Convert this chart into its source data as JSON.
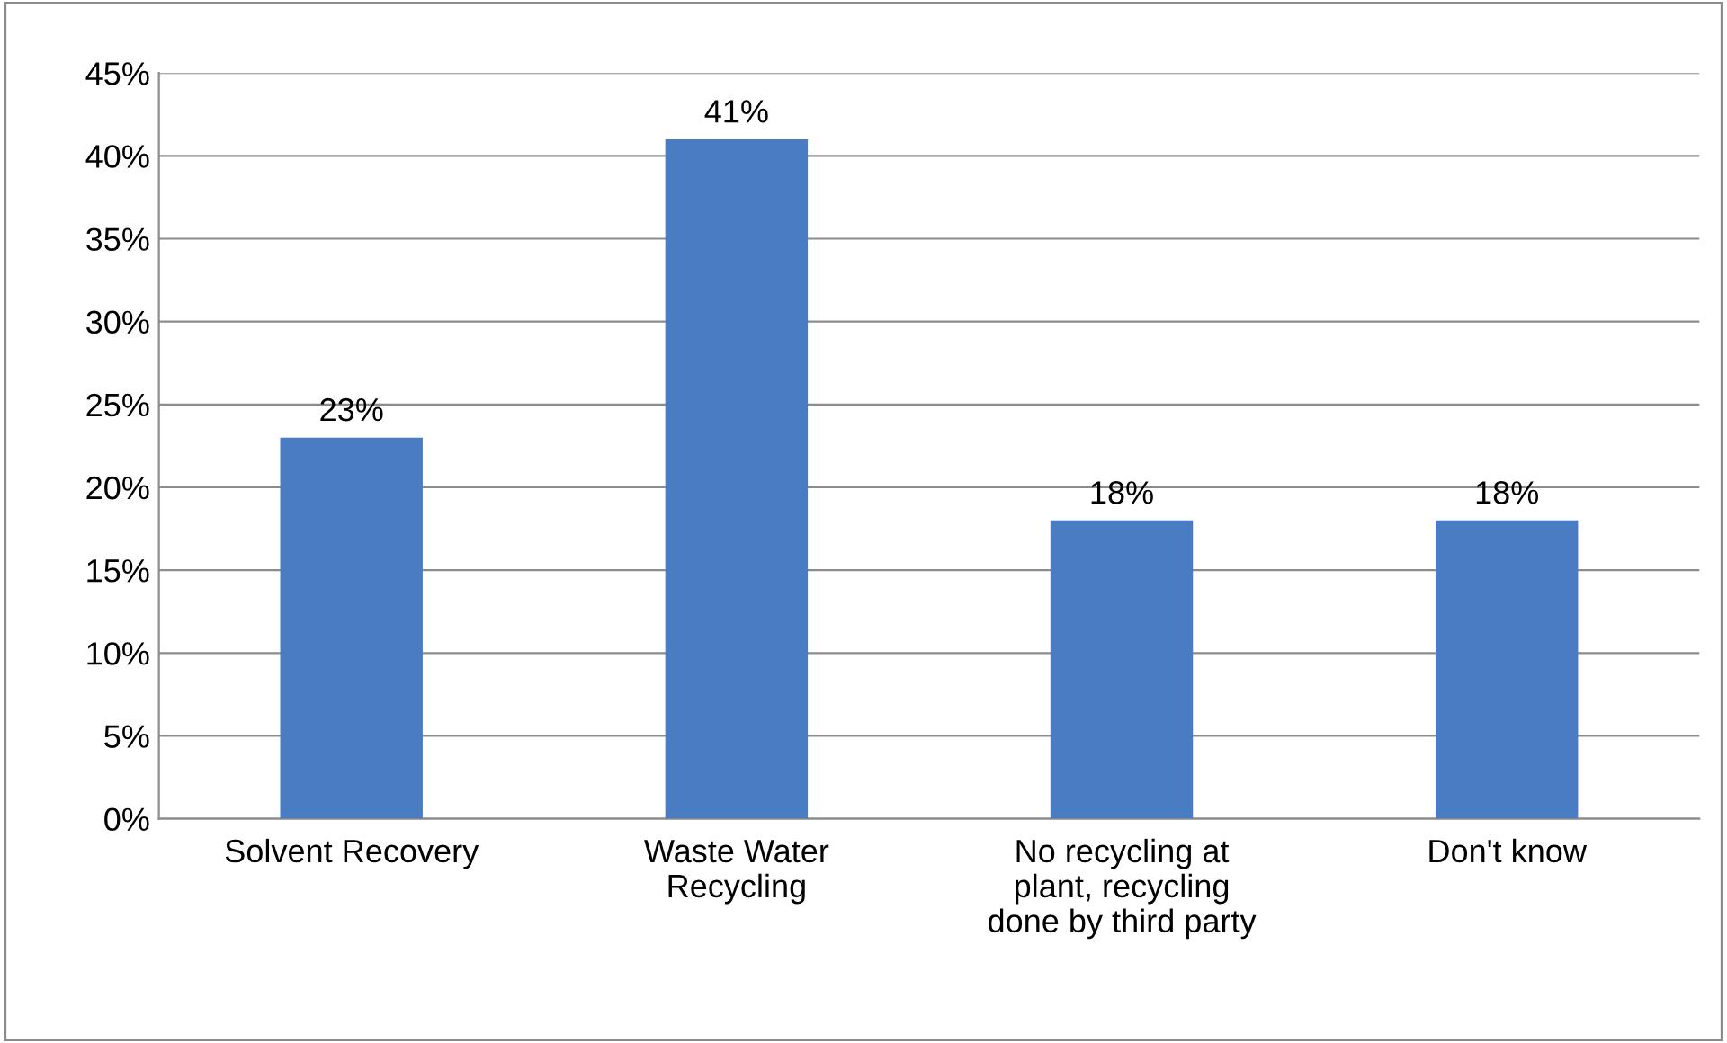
{
  "chart_data": {
    "type": "bar",
    "categories": [
      "Solvent Recovery",
      "Waste Water\nRecycling",
      "No recycling at\nplant, recycling\ndone by third party",
      "Don't know"
    ],
    "values": [
      23,
      41,
      18,
      18
    ],
    "value_labels": [
      "23%",
      "41%",
      "18%",
      "18%"
    ],
    "color": "#4a7cc4",
    "ylim": [
      0,
      45
    ],
    "yticks": [
      {
        "value": 0,
        "label": "0%"
      },
      {
        "value": 5,
        "label": "5%"
      },
      {
        "value": 10,
        "label": "10%"
      },
      {
        "value": 15,
        "label": "15%"
      },
      {
        "value": 20,
        "label": "20%"
      },
      {
        "value": 25,
        "label": "25%"
      },
      {
        "value": 30,
        "label": "30%"
      },
      {
        "value": 35,
        "label": "35%"
      },
      {
        "value": 40,
        "label": "40%"
      },
      {
        "value": 45,
        "label": "45%"
      }
    ],
    "grid": "y",
    "legend": false
  }
}
